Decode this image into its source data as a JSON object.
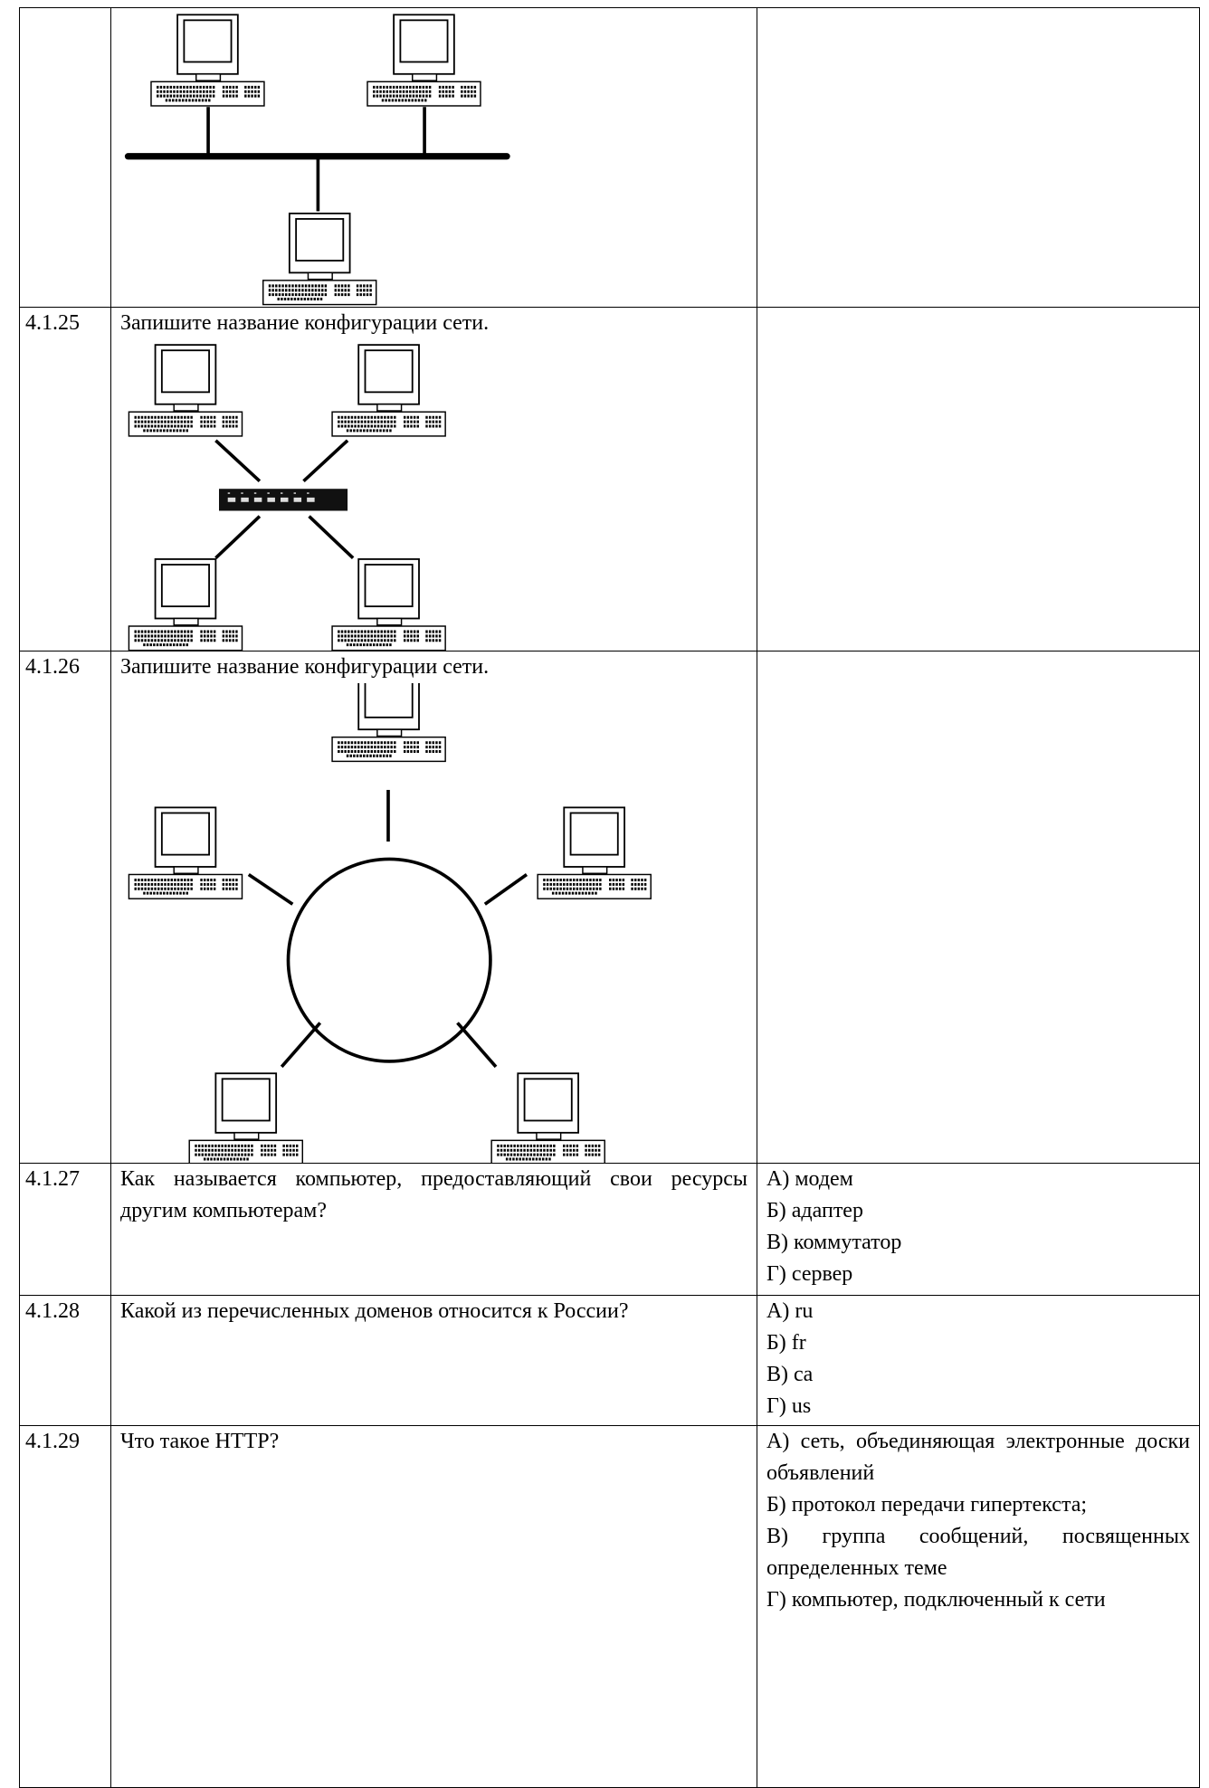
{
  "table": {
    "rows": [
      {
        "number": "4.1.25",
        "question": "Запишите название конфигурации сети."
      },
      {
        "number": "4.1.26",
        "question": "Запишите название конфигурации сети."
      },
      {
        "number": "4.1.27",
        "question": "Как называется компьютер, предоставляющий свои ресурсы другим компьютерам?",
        "options": [
          "А) модем",
          "Б) адаптер",
          "В) коммутатор",
          "Г) сервер"
        ]
      },
      {
        "number": "4.1.28",
        "question": "Какой из перечисленных доменов относится к России?",
        "options": [
          "А) ru",
          "Б) fr",
          "В) ca",
          "Г) us"
        ]
      },
      {
        "number": "4.1.29",
        "question": "Что такое HTTP?",
        "options": [
          "А) сеть, объединяющая электронные доски объявлений",
          "Б) протокол передачи гипертекста;",
          "В) группа сообщений, посвященных определенных теме",
          "Г) компьютер, подключенный к сети"
        ]
      }
    ]
  }
}
